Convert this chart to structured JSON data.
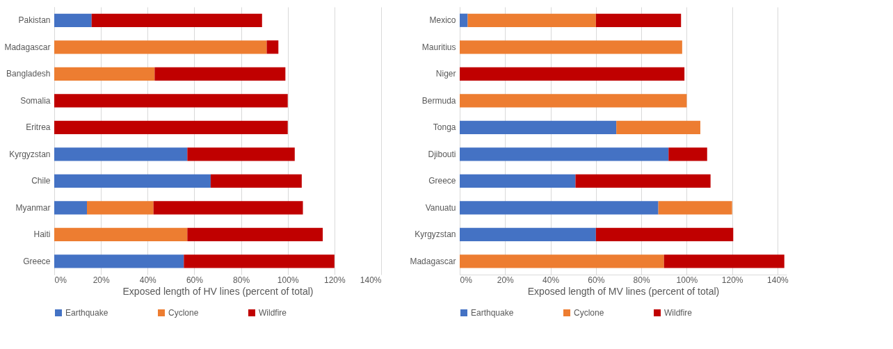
{
  "chart_data": [
    {
      "type": "bar",
      "orientation": "horizontal",
      "stacked": true,
      "xlabel": "Exposed length of HV lines (percent of total)",
      "categories": [
        "Pakistan",
        "Madagascar",
        "Bangladesh",
        "Somalia",
        "Eritrea",
        "Kyrgyzstan",
        "Chile",
        "Myanmar",
        "Haiti",
        "Greece"
      ],
      "series": [
        {
          "name": "Earthquake",
          "color": "#4472c4",
          "values": [
            16,
            null,
            null,
            null,
            null,
            57,
            67,
            14,
            null,
            55.5
          ]
        },
        {
          "name": "Cyclone",
          "color": "#ed7d31",
          "values": [
            null,
            91,
            43,
            null,
            null,
            null,
            null,
            28.5,
            57,
            null
          ]
        },
        {
          "name": "Wildfire",
          "color": "#c00000",
          "values": [
            73,
            5,
            56,
            100,
            100,
            46,
            39,
            64,
            58,
            64.5
          ]
        }
      ],
      "xlim": [
        0,
        140
      ],
      "xticks": [
        {
          "value": 0,
          "label": "0%"
        },
        {
          "value": 20,
          "label": "20%"
        },
        {
          "value": 40,
          "label": "40%"
        },
        {
          "value": 60,
          "label": "60%"
        },
        {
          "value": 80,
          "label": "80%"
        },
        {
          "value": 100,
          "label": "100%"
        },
        {
          "value": 120,
          "label": "120%"
        },
        {
          "value": 140,
          "label": "140%"
        }
      ],
      "grid": "x",
      "legend": "bottom"
    },
    {
      "type": "bar",
      "orientation": "horizontal",
      "stacked": true,
      "xlabel": "Exposed length of MV lines (percent of total)",
      "categories": [
        "Mexico",
        "Mauritius",
        "Niger",
        "Bermuda",
        "Tonga",
        "Djibouti",
        "Greece",
        "Vanuatu",
        "Kyrgyzstan",
        "Madagascar"
      ],
      "series": [
        {
          "name": "Earthquake",
          "color": "#4472c4",
          "values": [
            3.5,
            null,
            null,
            null,
            69,
            92,
            51,
            87.5,
            60,
            null
          ]
        },
        {
          "name": "Cyclone",
          "color": "#ed7d31",
          "values": [
            56.5,
            98,
            null,
            100,
            37,
            null,
            null,
            32.5,
            null,
            90
          ]
        },
        {
          "name": "Wildfire",
          "color": "#c00000",
          "values": [
            37.5,
            null,
            99,
            null,
            null,
            17,
            59.5,
            null,
            60.5,
            53
          ]
        }
      ],
      "xlim": [
        0,
        144
      ],
      "xticks": [
        {
          "value": 0,
          "label": "0%"
        },
        {
          "value": 20,
          "label": "20%"
        },
        {
          "value": 40,
          "label": "40%"
        },
        {
          "value": 60,
          "label": "60%"
        },
        {
          "value": 80,
          "label": "80%"
        },
        {
          "value": 100,
          "label": "100%"
        },
        {
          "value": 120,
          "label": "120%"
        },
        {
          "value": 140,
          "label": "140%"
        }
      ],
      "grid": "x",
      "legend": "bottom"
    }
  ]
}
